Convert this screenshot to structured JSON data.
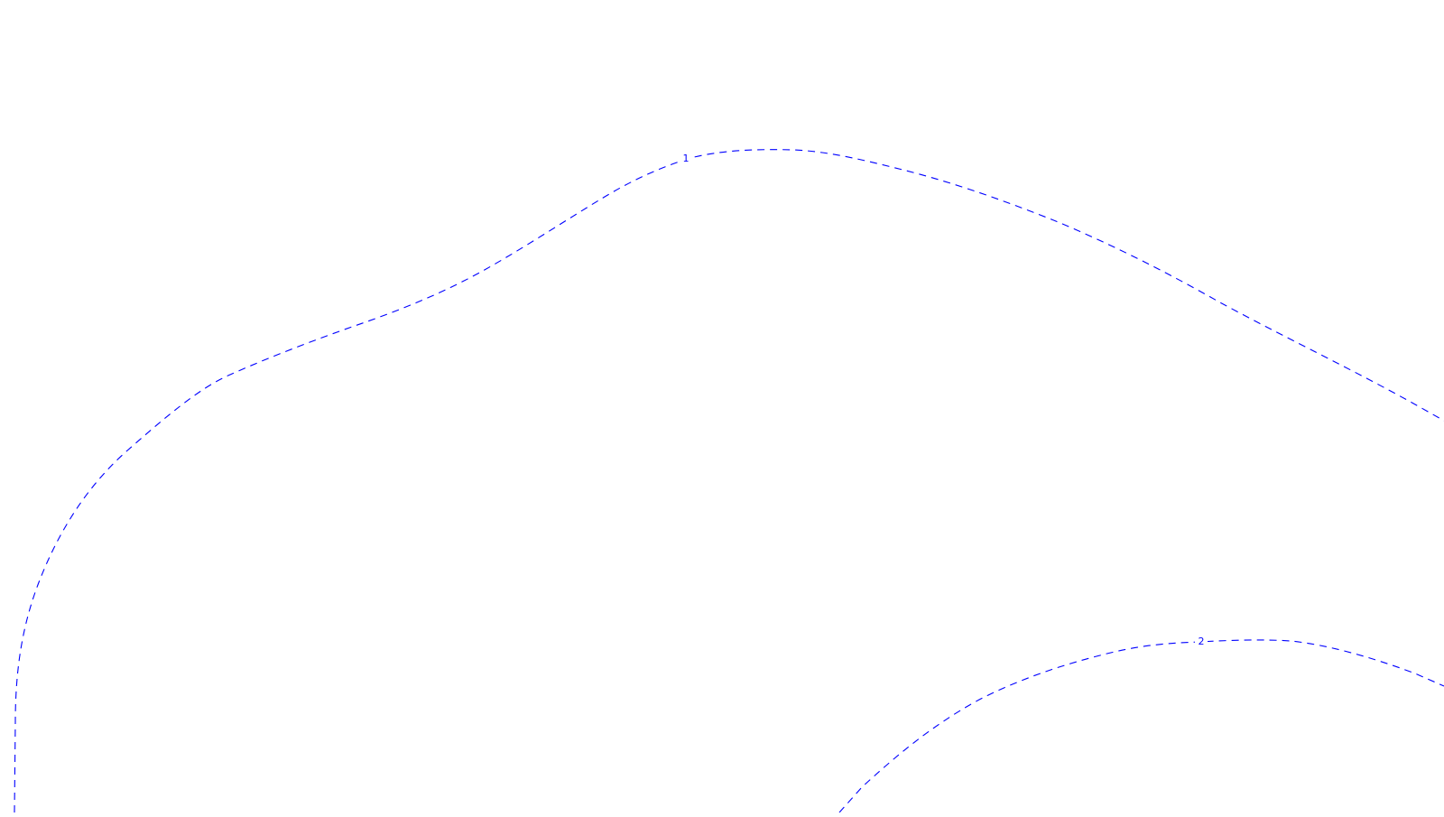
{
  "map": {
    "line_color": "#0000ff",
    "background_color": "#ffffff",
    "contours": [
      {
        "id": "contour-1",
        "label": "1"
      },
      {
        "id": "contour-2",
        "label": "2"
      }
    ]
  }
}
